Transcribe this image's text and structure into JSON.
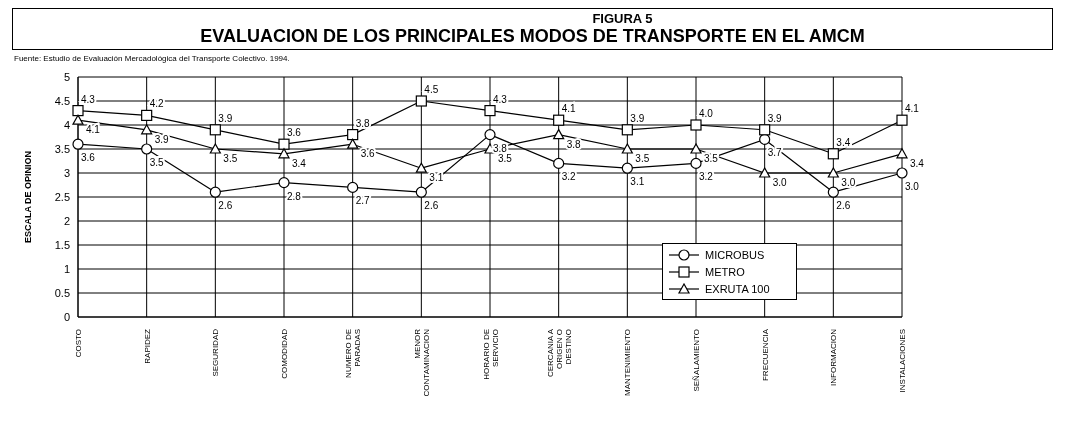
{
  "chart_data": {
    "type": "line",
    "title": "FIGURA 5",
    "subtitle": "EVALUACION DE LOS PRINCIPALES MODOS DE TRANSPORTE EN EL AMCM",
    "annotations": [
      "Fuente: Estudio de Evaluación Mercadológica del Transporte Colectivo. 1994."
    ],
    "ylabel": "ESCALA DE OPINION",
    "categories": [
      "COSTO",
      "RAPIDEZ",
      "SEGURIDAD",
      "COMODIDAD",
      "NUMERO DE PARADAS",
      "MENOR CONTAMINACION",
      "HORARIO DE SERVICIO",
      "CERCANIA A ORIGEN O DESTINO",
      "MANTENIMIENTO",
      "SEÑALAMIENTO",
      "FRECUENCIA",
      "INFORMACION",
      "INSTALACIONES"
    ],
    "series": [
      {
        "name": "MICROBUS",
        "color": "#000000",
        "marker": "circle",
        "values": [
          3.6,
          3.5,
          2.6,
          2.8,
          2.7,
          2.6,
          3.8,
          3.2,
          3.1,
          3.2,
          3.7,
          2.6,
          3.0
        ],
        "value_labels": [
          "3.6",
          "3.5",
          "2.6",
          "2.8",
          "2.7",
          "2.6",
          "3.8",
          "3.2",
          "3.1",
          "3.2",
          "3.7",
          "2.6",
          "3.0"
        ]
      },
      {
        "name": "METRO",
        "color": "#000000",
        "marker": "square",
        "values": [
          4.3,
          4.2,
          3.9,
          3.6,
          3.8,
          4.5,
          4.3,
          4.1,
          3.9,
          4.0,
          3.9,
          3.4,
          4.1
        ],
        "value_labels": [
          "4.3",
          "4.2",
          "3.9",
          "3.6",
          "3.8",
          "4.5",
          "4.3",
          "4.1",
          "3.9",
          "4.0",
          "3.9",
          "3.4",
          "4.1"
        ]
      },
      {
        "name": "EXRUTA 100",
        "color": "#000000",
        "marker": "triangle",
        "values": [
          4.1,
          3.9,
          3.5,
          3.4,
          3.6,
          3.1,
          3.5,
          3.8,
          3.5,
          3.5,
          3.0,
          3.0,
          3.4
        ],
        "value_labels": [
          "4.1",
          "3.9",
          "3.5",
          "3.4",
          "3.6",
          "3.1",
          "3.5",
          "3.8",
          "3.5",
          "3.5",
          "3.0",
          "3.0",
          "3.4"
        ]
      }
    ],
    "ylim": [
      0,
      5
    ],
    "yticks": [
      0,
      0.5,
      1,
      1.5,
      2,
      2.5,
      3,
      3.5,
      4,
      4.5,
      5
    ],
    "grid": true,
    "legend": "bottom right",
    "line_style": "solid"
  }
}
